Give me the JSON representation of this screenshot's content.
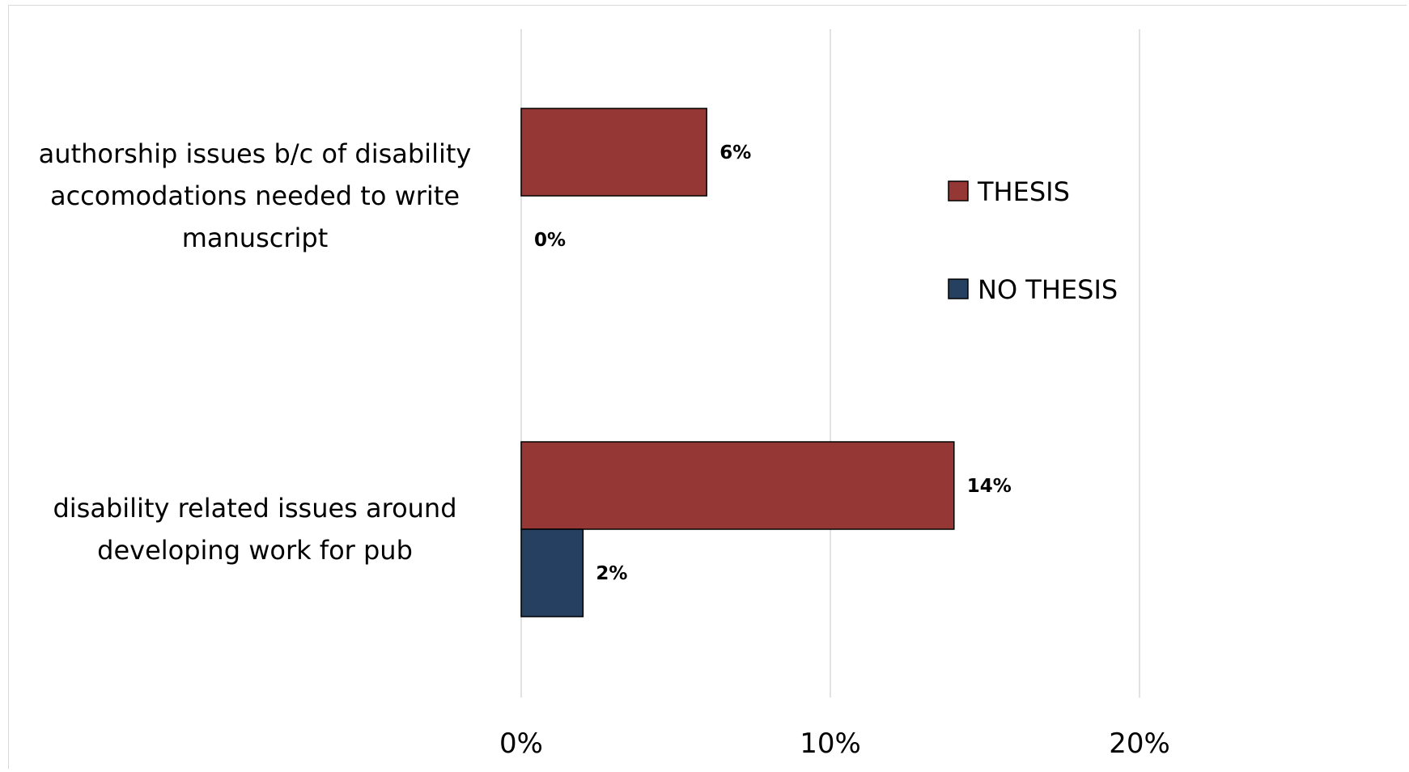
{
  "chart_data": {
    "type": "bar",
    "orientation": "horizontal",
    "categories": [
      [
        "authorship issues b/c of disability",
        "accomodations needed to write",
        "manuscript"
      ],
      [
        "disability related issues around",
        "developing work for pub"
      ]
    ],
    "series": [
      {
        "name": "THESIS",
        "color": "#953735",
        "values": [
          6,
          14
        ],
        "labels": [
          "6%",
          "14%"
        ]
      },
      {
        "name": "NO THESIS",
        "color": "#264061",
        "values": [
          0,
          2
        ],
        "labels": [
          "0%",
          "2%"
        ]
      }
    ],
    "xlim": [
      0,
      28
    ],
    "xticks": [
      0,
      10,
      20
    ],
    "xtick_labels": [
      "0%",
      "10%",
      "20%"
    ],
    "grid": true,
    "legend_position": "right"
  }
}
